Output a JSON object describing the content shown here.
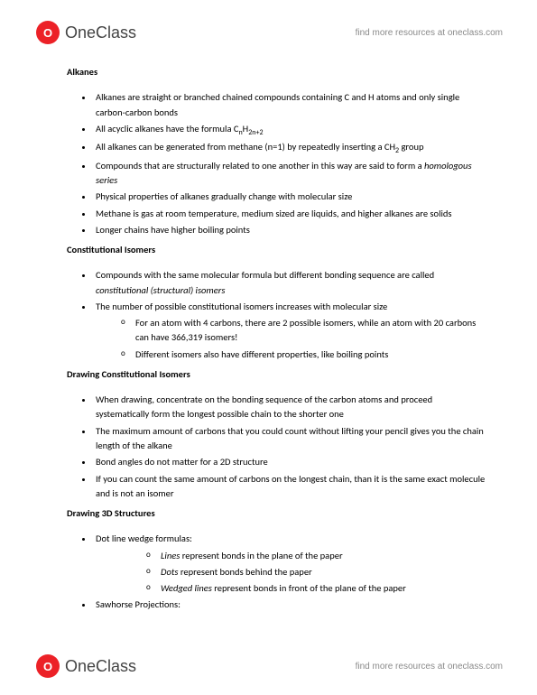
{
  "brand": {
    "mark_letter": "O",
    "name_part1": "One",
    "name_part2": "Class",
    "tagline": "find more resources at oneclass.com"
  },
  "sections": [
    {
      "title": "Alkanes",
      "bullets": [
        {
          "html": "Alkanes are straight or branched chained compounds containing C and H atoms and only single carbon-carbon bonds"
        },
        {
          "html": "All acyclic alkanes have the formula C<sub>n</sub>H<sub>2n+2</sub>"
        },
        {
          "html": "All alkanes can be generated from methane (n=1) by repeatedly inserting a CH<sub>2</sub> group"
        },
        {
          "html": "Compounds that are structurally related to one another in this way are said to form a <span class=\"italic\">homologous series</span>"
        },
        {
          "html": "Physical properties of alkanes gradually change with molecular size"
        },
        {
          "html": "Methane is gas at room temperature, medium sized are liquids, and higher alkanes are solids"
        },
        {
          "html": "Longer chains have higher boiling points"
        }
      ]
    },
    {
      "title": "Constitutional Isomers",
      "bullets": [
        {
          "html": "Compounds with the same molecular formula but different bonding sequence are called <span class=\"italic\">constitutional (structural) isomers</span>"
        },
        {
          "html": "The number of possible constitutional isomers increases with molecular size",
          "sub": [
            {
              "html": "For an atom with 4 carbons, there are 2 possible isomers, while an atom with 20 carbons can have 366,319 isomers!"
            },
            {
              "html": "Different isomers also have different properties, like boiling points"
            }
          ]
        }
      ]
    },
    {
      "title": "Drawing Constitutional Isomers",
      "bullets": [
        {
          "html": "When drawing, concentrate on the bonding sequence of the carbon atoms and proceed systematically form the longest possible chain to the shorter one"
        },
        {
          "html": "The maximum amount of carbons that you could count without lifting your pencil gives you the chain length of the alkane"
        },
        {
          "html": "Bond angles do not matter for a 2D structure"
        },
        {
          "html": "If you can count the same amount of carbons on the longest chain, than it is the same exact molecule and is not an isomer"
        }
      ]
    },
    {
      "title": "Drawing 3D Structures",
      "bullets": [
        {
          "html": "Dot line wedge formulas:",
          "sub3": [
            {
              "html": "<span class=\"italic\">Lines</span> represent bonds in the plane of the paper"
            },
            {
              "html": "<span class=\"italic\">Dots</span> represent bonds behind the paper"
            },
            {
              "html": "<span class=\"italic\">Wedged lines</span> represent bonds in front of the plane of the paper"
            }
          ]
        },
        {
          "html": "Sawhorse Projections:"
        }
      ]
    }
  ]
}
